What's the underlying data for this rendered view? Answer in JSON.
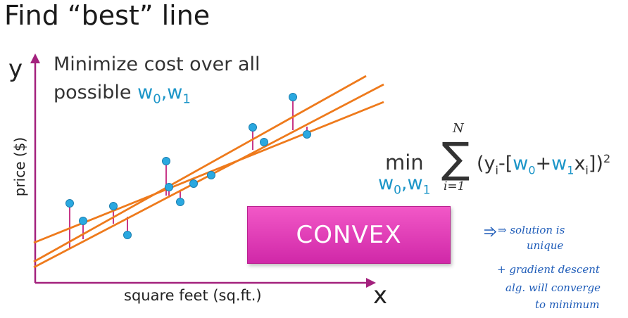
{
  "title": "Find “best” line",
  "axis": {
    "y_symbol": "y",
    "x_symbol": "x",
    "y_label": "price ($)",
    "x_label": "square feet (sq.ft.)"
  },
  "text": {
    "minimize_line1": "Minimize cost over all",
    "minimize_line2": "possible ",
    "weights": "w0,w1"
  },
  "formula": {
    "min_word": "min",
    "min_sub": "w0,w1",
    "sum_upper": "N",
    "sum_lower": "i=1"
  },
  "box": {
    "label": "CONVEX"
  },
  "notes": {
    "line1": "⇒ solution is",
    "line2": "unique",
    "line3": "+ gradient descent",
    "line4": "alg. will converge",
    "line5": "to minimum"
  },
  "colors": {
    "line": "#ee7a1c",
    "point": "#2aa8e0",
    "residual": "#c2227a",
    "axis": "#a3217d",
    "accent": "#1b95c8",
    "box": "#e23fb7"
  }
}
